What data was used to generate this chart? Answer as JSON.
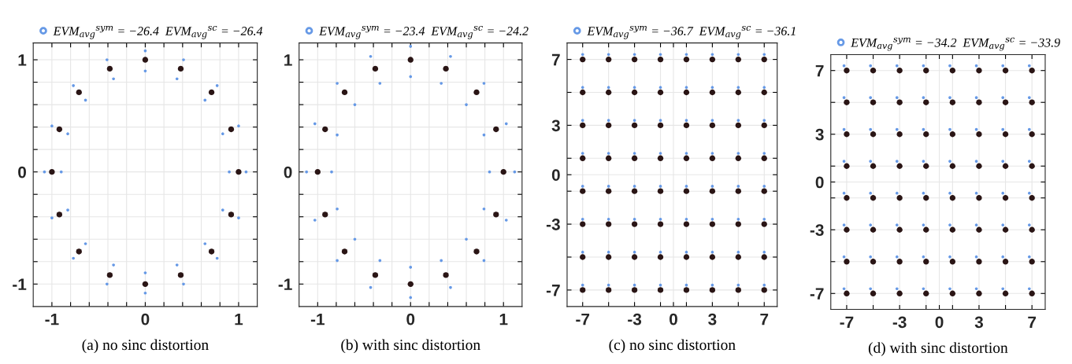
{
  "chart_data": [
    {
      "type": "scatter",
      "xlabel": "(a) no sinc distortion",
      "xlim": [
        -1.2,
        1.2
      ],
      "ylim": [
        -1.2,
        1.15
      ],
      "marker": "circle",
      "grid": true,
      "legend": "top",
      "xticks": [
        -1,
        {
          "value": -0.8,
          "label": null
        },
        {
          "value": -0.6,
          "label": null
        },
        {
          "value": -0.4,
          "label": null
        },
        {
          "value": -0.2,
          "label": null
        },
        0,
        {
          "value": 0.2,
          "label": null
        },
        {
          "value": 0.4,
          "label": null
        },
        {
          "value": 0.6,
          "label": null
        },
        {
          "value": 0.8,
          "label": null
        },
        1
      ],
      "yticks": [
        -1,
        {
          "value": -0.8,
          "label": null
        },
        {
          "value": -0.6,
          "label": null
        },
        {
          "value": -0.4,
          "label": null
        },
        {
          "value": -0.2,
          "label": null
        },
        0,
        {
          "value": 0.2,
          "label": null
        },
        {
          "value": 0.4,
          "label": null
        },
        {
          "value": 0.6,
          "label": null
        },
        {
          "value": 0.8,
          "label": null
        },
        1
      ],
      "series": [
        {
          "name": "EVM$_{avg}$$^{sym}$ = −26.4  EVM$_{avg}$$^{sc}$ = −26.4",
          "color": "#6699e6",
          "x": [
            1.08,
            1.0,
            0.77,
            0.41,
            0,
            -0.41,
            -0.77,
            -1.0,
            -1.08,
            -1.0,
            -0.77,
            -0.41,
            0,
            0.41,
            0.77,
            1.0,
            0.9,
            0.83,
            0.64,
            0.34,
            0,
            -0.34,
            -0.64,
            -0.83,
            -0.9,
            -0.83,
            -0.64,
            -0.34,
            0,
            0.34,
            0.64,
            0.83
          ],
          "values": [
            0,
            0.41,
            0.77,
            1.0,
            1.08,
            1.0,
            0.77,
            0.41,
            0,
            -0.41,
            -0.77,
            -1.0,
            -1.08,
            -1.0,
            -0.77,
            -0.41,
            0,
            0.34,
            0.64,
            0.83,
            0.9,
            0.83,
            0.64,
            0.34,
            0,
            -0.34,
            -0.64,
            -0.83,
            -0.9,
            -0.83,
            -0.64,
            -0.34
          ]
        },
        {
          "color": "#2a1515",
          "x": [
            1,
            0.92,
            0.71,
            0.38,
            0,
            -0.38,
            -0.71,
            -0.92,
            -1,
            -0.92,
            -0.71,
            -0.38,
            0,
            0.38,
            0.71,
            0.92
          ],
          "values": [
            0,
            0.38,
            0.71,
            0.92,
            1,
            0.92,
            0.71,
            0.38,
            0,
            -0.38,
            -0.71,
            -0.92,
            -1,
            -0.92,
            -0.71,
            -0.38
          ]
        }
      ]
    },
    {
      "type": "scatter",
      "xlabel": "(b) with sinc distortion",
      "xlim": [
        -1.2,
        1.2
      ],
      "ylim": [
        -1.2,
        1.15
      ],
      "marker": "circle",
      "grid": true,
      "legend": "top",
      "xticks": [
        -1,
        {
          "value": -0.8,
          "label": null
        },
        {
          "value": -0.6,
          "label": null
        },
        {
          "value": -0.4,
          "label": null
        },
        {
          "value": -0.2,
          "label": null
        },
        0,
        {
          "value": 0.2,
          "label": null
        },
        {
          "value": 0.4,
          "label": null
        },
        {
          "value": 0.6,
          "label": null
        },
        {
          "value": 0.8,
          "label": null
        },
        1
      ],
      "yticks": [
        -1,
        {
          "value": -0.8,
          "label": null
        },
        {
          "value": -0.6,
          "label": null
        },
        {
          "value": -0.4,
          "label": null
        },
        {
          "value": -0.2,
          "label": null
        },
        0,
        {
          "value": 0.2,
          "label": null
        },
        {
          "value": 0.4,
          "label": null
        },
        {
          "value": 0.6,
          "label": null
        },
        {
          "value": 0.8,
          "label": null
        },
        1
      ],
      "series": [
        {
          "name": "EVM$_{avg}$$^{sym}$ = −23.4  EVM$_{avg}$$^{sc}$ = −24.2",
          "color": "#6699e6",
          "x": [
            1.12,
            1.03,
            0.79,
            0.43,
            0,
            -0.43,
            -0.79,
            -1.03,
            -1.12,
            -1.03,
            -0.79,
            -0.43,
            0,
            0.43,
            0.79,
            1.03,
            0.85,
            0.79,
            0.6,
            0.33,
            0,
            -0.33,
            -0.6,
            -0.79,
            -0.85,
            -0.79,
            -0.6,
            -0.33,
            0,
            0.33,
            0.6,
            0.79
          ],
          "values": [
            0,
            0.43,
            0.79,
            1.03,
            1.12,
            1.03,
            0.79,
            0.43,
            0,
            -0.43,
            -0.79,
            -1.03,
            -1.12,
            -1.03,
            -0.79,
            -0.43,
            0,
            0.33,
            0.6,
            0.79,
            0.85,
            0.79,
            0.6,
            0.33,
            0,
            -0.33,
            -0.6,
            -0.79,
            -0.85,
            -0.79,
            -0.6,
            -0.33
          ]
        },
        {
          "color": "#2a1515",
          "x": [
            1,
            0.92,
            0.71,
            0.38,
            0,
            -0.38,
            -0.71,
            -0.92,
            -1,
            -0.92,
            -0.71,
            -0.38,
            0,
            0.38,
            0.71,
            0.92
          ],
          "values": [
            0,
            0.38,
            0.71,
            0.92,
            1,
            0.92,
            0.71,
            0.38,
            0,
            -0.38,
            -0.71,
            -0.92,
            -1,
            -0.92,
            -0.71,
            -0.38
          ]
        }
      ]
    },
    {
      "type": "scatter",
      "xlabel": "(c) no sinc distortion",
      "xlim": [
        -8.2,
        8
      ],
      "ylim": [
        -8,
        8
      ],
      "marker": "circle",
      "grid": true,
      "legend": "top",
      "xticks": [
        -7,
        {
          "value": -5,
          "label": null
        },
        -3,
        {
          "value": -1,
          "label": null
        },
        0,
        {
          "value": 1,
          "label": null
        },
        3,
        {
          "value": 5,
          "label": null
        },
        7
      ],
      "yticks": [
        -7,
        {
          "value": -5,
          "label": null
        },
        -3,
        {
          "value": -1,
          "label": null
        },
        0,
        {
          "value": 1,
          "label": null
        },
        3,
        {
          "value": 5,
          "label": null
        },
        7
      ],
      "series": [
        {
          "name": "EVM$_{avg}$$^{sym}$ = −36.7  EVM$_{avg}$$^{sc}$ = −36.1",
          "color": "#6699e6",
          "x": [
            -7,
            -5,
            -3,
            -1,
            1,
            3,
            5,
            7,
            -7,
            -5,
            -3,
            -1,
            1,
            3,
            5,
            7,
            -7,
            -5,
            -3,
            -1,
            1,
            3,
            5,
            7,
            -7,
            -5,
            -3,
            -1,
            1,
            3,
            5,
            7,
            -7,
            -5,
            -3,
            -1,
            1,
            3,
            5,
            7,
            -7,
            -5,
            -3,
            -1,
            1,
            3,
            5,
            7,
            -7,
            -5,
            -3,
            -1,
            1,
            3,
            5,
            7,
            -7,
            -5,
            -3,
            -1,
            1,
            3,
            5,
            7
          ],
          "values": [
            7.3,
            7.3,
            7.3,
            7.3,
            7.3,
            7.3,
            7.3,
            7.3,
            5.3,
            5.3,
            5.3,
            5.3,
            5.3,
            5.3,
            5.3,
            5.3,
            3.3,
            3.3,
            3.3,
            3.3,
            3.3,
            3.3,
            3.3,
            3.3,
            1.3,
            1.3,
            1.3,
            1.3,
            1.3,
            1.3,
            1.3,
            1.3,
            -0.7,
            -0.7,
            -0.7,
            -0.7,
            -0.7,
            -0.7,
            -0.7,
            -0.7,
            -2.7,
            -2.7,
            -2.7,
            -2.7,
            -2.7,
            -2.7,
            -2.7,
            -2.7,
            -4.7,
            -4.7,
            -4.7,
            -4.7,
            -4.7,
            -4.7,
            -4.7,
            -4.7,
            -6.7,
            -6.7,
            -6.7,
            -6.7,
            -6.7,
            -6.7,
            -6.7,
            -6.7
          ]
        },
        {
          "color": "#2a1515",
          "x": [
            -7,
            -5,
            -3,
            -1,
            1,
            3,
            5,
            7,
            -7,
            -5,
            -3,
            -1,
            1,
            3,
            5,
            7,
            -7,
            -5,
            -3,
            -1,
            1,
            3,
            5,
            7,
            -7,
            -5,
            -3,
            -1,
            1,
            3,
            5,
            7,
            -7,
            -5,
            -3,
            -1,
            1,
            3,
            5,
            7,
            -7,
            -5,
            -3,
            -1,
            1,
            3,
            5,
            7,
            -7,
            -5,
            -3,
            -1,
            1,
            3,
            5,
            7,
            -7,
            -5,
            -3,
            -1,
            1,
            3,
            5,
            7
          ],
          "values": [
            7,
            7,
            7,
            7,
            7,
            7,
            7,
            7,
            5,
            5,
            5,
            5,
            5,
            5,
            5,
            5,
            3,
            3,
            3,
            3,
            3,
            3,
            3,
            3,
            1,
            1,
            1,
            1,
            1,
            1,
            1,
            1,
            -1,
            -1,
            -1,
            -1,
            -1,
            -1,
            -1,
            -1,
            -3,
            -3,
            -3,
            -3,
            -3,
            -3,
            -3,
            -3,
            -5,
            -5,
            -5,
            -5,
            -5,
            -5,
            -5,
            -5,
            -7,
            -7,
            -7,
            -7,
            -7,
            -7,
            -7,
            -7
          ]
        }
      ]
    },
    {
      "type": "scatter",
      "xlabel": "(d) with sinc distortion",
      "xlim": [
        -8.2,
        8
      ],
      "ylim": [
        -8,
        8
      ],
      "marker": "circle",
      "grid": true,
      "legend": "top",
      "xticks": [
        -7,
        {
          "value": -5,
          "label": null
        },
        -3,
        {
          "value": -1,
          "label": null
        },
        0,
        {
          "value": 1,
          "label": null
        },
        3,
        {
          "value": 5,
          "label": null
        },
        7
      ],
      "yticks": [
        -7,
        {
          "value": -5,
          "label": null
        },
        -3,
        {
          "value": -1,
          "label": null
        },
        0,
        {
          "value": 1,
          "label": null
        },
        3,
        {
          "value": 5,
          "label": null
        },
        7
      ],
      "series": [
        {
          "name": "EVM$_{avg}$$^{sym}$ = −34.2  EVM$_{avg}$$^{sc}$ = −33.9",
          "color": "#6699e6",
          "x": [
            -7.2,
            -5.2,
            -3.2,
            -1.2,
            0.8,
            2.8,
            4.8,
            6.8,
            -7.2,
            -5.2,
            -3.2,
            -1.2,
            0.8,
            2.8,
            4.8,
            6.8,
            -7.2,
            -5.2,
            -3.2,
            -1.2,
            0.8,
            2.8,
            4.8,
            6.8,
            -7.2,
            -5.2,
            -3.2,
            -1.2,
            0.8,
            2.8,
            4.8,
            6.8,
            -7.2,
            -5.2,
            -3.2,
            -1.2,
            0.8,
            2.8,
            4.8,
            6.8,
            -7.2,
            -5.2,
            -3.2,
            -1.2,
            0.8,
            2.8,
            4.8,
            6.8,
            -7.2,
            -5.2,
            -3.2,
            -1.2,
            0.8,
            2.8,
            4.8,
            6.8,
            -7.2,
            -5.2,
            -3.2,
            -1.2,
            0.8,
            2.8,
            4.8,
            6.8
          ],
          "values": [
            7.3,
            7.3,
            7.3,
            7.3,
            7.3,
            7.3,
            7.3,
            7.3,
            5.3,
            5.3,
            5.3,
            5.3,
            5.3,
            5.3,
            5.3,
            5.3,
            3.3,
            3.3,
            3.3,
            3.3,
            3.3,
            3.3,
            3.3,
            3.3,
            1.3,
            1.3,
            1.3,
            1.3,
            1.3,
            1.3,
            1.3,
            1.3,
            -0.7,
            -0.7,
            -0.7,
            -0.7,
            -0.7,
            -0.7,
            -0.7,
            -0.7,
            -2.7,
            -2.7,
            -2.7,
            -2.7,
            -2.7,
            -2.7,
            -2.7,
            -2.7,
            -4.7,
            -4.7,
            -4.7,
            -4.7,
            -4.7,
            -4.7,
            -4.7,
            -4.7,
            -6.7,
            -6.7,
            -6.7,
            -6.7,
            -6.7,
            -6.7,
            -6.7,
            -6.7
          ]
        },
        {
          "color": "#2a1515",
          "x": [
            -7,
            -5,
            -3,
            -1,
            1,
            3,
            5,
            7,
            -7,
            -5,
            -3,
            -1,
            1,
            3,
            5,
            7,
            -7,
            -5,
            -3,
            -1,
            1,
            3,
            5,
            7,
            -7,
            -5,
            -3,
            -1,
            1,
            3,
            5,
            7,
            -7,
            -5,
            -3,
            -1,
            1,
            3,
            5,
            7,
            -7,
            -5,
            -3,
            -1,
            1,
            3,
            5,
            7,
            -7,
            -5,
            -3,
            -1,
            1,
            3,
            5,
            7,
            -7,
            -5,
            -3,
            -1,
            1,
            3,
            5,
            7
          ],
          "values": [
            7,
            7,
            7,
            7,
            7,
            7,
            7,
            7,
            5,
            5,
            5,
            5,
            5,
            5,
            5,
            5,
            3,
            3,
            3,
            3,
            3,
            3,
            3,
            3,
            1,
            1,
            1,
            1,
            1,
            1,
            1,
            1,
            -1,
            -1,
            -1,
            -1,
            -1,
            -1,
            -1,
            -1,
            -3,
            -3,
            -3,
            -3,
            -3,
            -3,
            -3,
            -3,
            -5,
            -5,
            -5,
            -5,
            -5,
            -5,
            -5,
            -5,
            -7,
            -7,
            -7,
            -7,
            -7,
            -7,
            -7,
            -7
          ]
        }
      ]
    }
  ]
}
